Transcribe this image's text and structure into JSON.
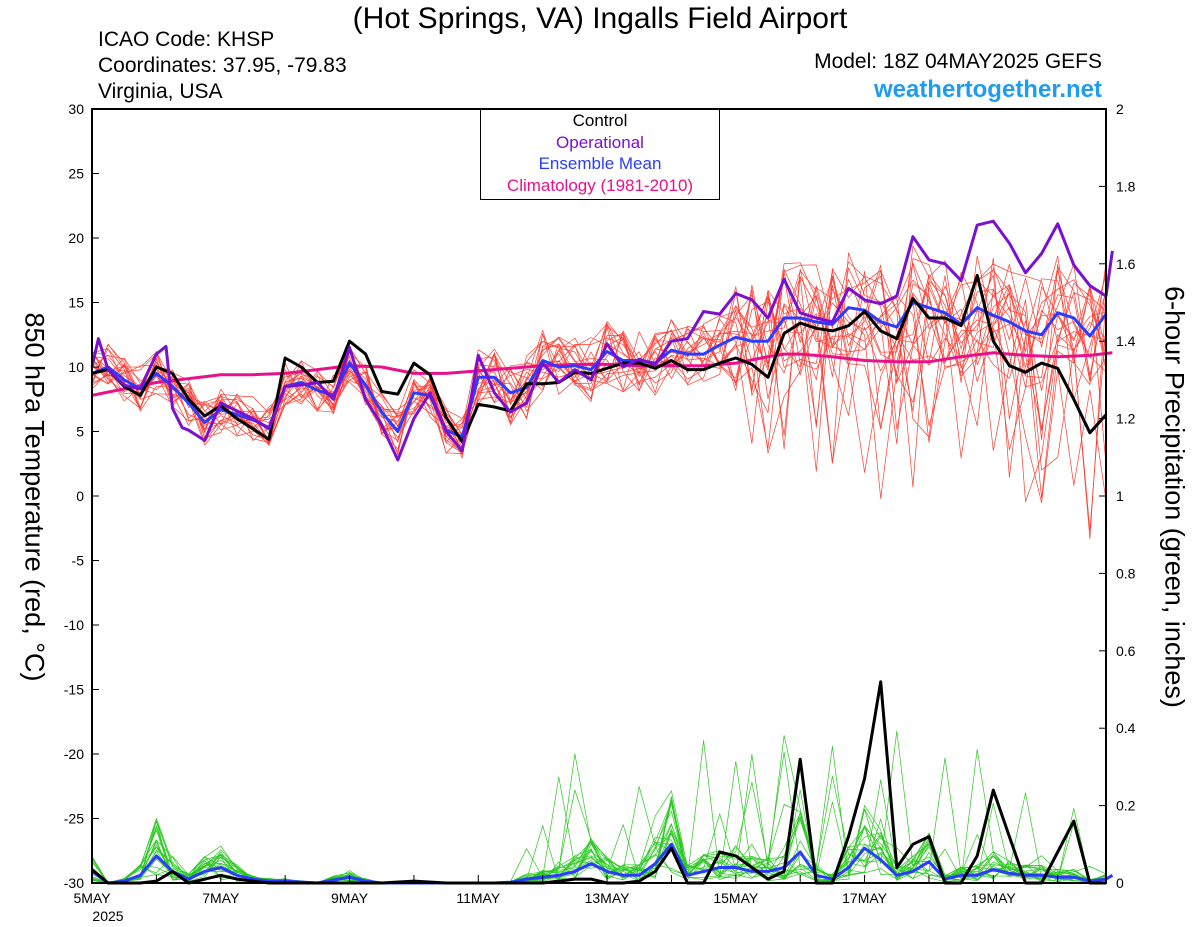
{
  "header": {
    "title": "(Hot Springs, VA) Ingalls Field Airport",
    "icao": "ICAO Code: KHSP",
    "coordinates": "Coordinates: 37.95, -79.83",
    "region": "Virginia, USA",
    "model": "Model: 18Z 04MAY2025 GEFS",
    "site": "weathertogether.net"
  },
  "colors": {
    "control": "#000000",
    "operational": "#7a10d0",
    "ensemble_mean": "#2a3cff",
    "climatology": "#e8118a",
    "members_temp": "#ff3b30",
    "members_precip": "#28c81e",
    "site": "#1e9cf0"
  },
  "chart_data": {
    "type": "line",
    "legend": [
      "Control",
      "Operational",
      "Ensemble Mean",
      "Climatology (1981-2010)"
    ],
    "ylabel_left": "850 hPa Temperature (red, °C)",
    "ylabel_right": "6-hour Precipitation (green, inches)",
    "ylim_left": [
      -30,
      30
    ],
    "ylim_right": [
      0,
      2
    ],
    "yticks_left": [
      "30",
      "25",
      "20",
      "15",
      "10",
      "5",
      "0",
      "-5",
      "-10",
      "-15",
      "-20",
      "-25",
      "-30"
    ],
    "yticks_right": [
      "2",
      "1.8",
      "1.6",
      "1.4",
      "1.2",
      "1",
      "0.8",
      "0.6",
      "0.4",
      "0.2",
      "0"
    ],
    "x_start_day": 5,
    "x_end_day": 20.75,
    "x_tick_labels": [
      "5MAY",
      "7MAY",
      "9MAY",
      "11MAY",
      "13MAY",
      "15MAY",
      "17MAY",
      "19MAY"
    ],
    "x_tick_days": [
      5,
      7,
      9,
      11,
      13,
      15,
      17,
      19
    ],
    "x_sublabel": "2025",
    "temperature": {
      "control": [
        [
          5,
          9.5
        ],
        [
          5.25,
          9.8
        ],
        [
          5.5,
          8.5
        ],
        [
          5.75,
          7.8
        ],
        [
          6,
          10
        ],
        [
          6.25,
          9.5
        ],
        [
          6.5,
          7.5
        ],
        [
          6.75,
          6.2
        ],
        [
          7,
          7
        ],
        [
          7.25,
          6
        ],
        [
          7.5,
          5.2
        ],
        [
          7.75,
          4.4
        ],
        [
          8,
          10.7
        ],
        [
          8.25,
          10
        ],
        [
          8.5,
          8.8
        ],
        [
          8.75,
          8.9
        ],
        [
          9,
          12
        ],
        [
          9.25,
          11
        ],
        [
          9.5,
          8.1
        ],
        [
          9.75,
          7.9
        ],
        [
          10,
          10.3
        ],
        [
          10.25,
          9.4
        ],
        [
          10.5,
          6.1
        ],
        [
          10.75,
          4.2
        ],
        [
          11,
          7.1
        ],
        [
          11.25,
          6.9
        ],
        [
          11.5,
          6.6
        ],
        [
          11.75,
          8.7
        ],
        [
          12,
          8.7
        ],
        [
          12.25,
          8.8
        ],
        [
          12.5,
          9.6
        ],
        [
          12.75,
          9.5
        ],
        [
          13,
          9.9
        ],
        [
          13.25,
          10.3
        ],
        [
          13.5,
          10.3
        ],
        [
          13.75,
          9.9
        ],
        [
          14,
          10.5
        ],
        [
          14.25,
          9.8
        ],
        [
          14.5,
          9.8
        ],
        [
          14.75,
          10.3
        ],
        [
          15,
          10.7
        ],
        [
          15.25,
          10.2
        ],
        [
          15.5,
          9.2
        ],
        [
          15.75,
          12.6
        ],
        [
          16,
          13.4
        ],
        [
          16.25,
          13
        ],
        [
          16.5,
          12.8
        ],
        [
          16.75,
          13.2
        ],
        [
          17,
          14.3
        ],
        [
          17.25,
          12.8
        ],
        [
          17.5,
          12.2
        ],
        [
          17.75,
          15.3
        ],
        [
          18,
          13.8
        ],
        [
          18.25,
          13.8
        ],
        [
          18.5,
          13.2
        ],
        [
          18.75,
          17.1
        ],
        [
          19,
          12
        ],
        [
          19.25,
          10.1
        ],
        [
          19.5,
          9.6
        ],
        [
          19.75,
          10.3
        ],
        [
          20,
          9.9
        ],
        [
          20.25,
          7.5
        ],
        [
          20.5,
          4.9
        ],
        [
          20.75,
          6.3
        ]
      ],
      "operational": [
        [
          5,
          10
        ],
        [
          5.1,
          12.2
        ],
        [
          5.25,
          9.8
        ],
        [
          5.5,
          8.6
        ],
        [
          5.75,
          8.3
        ],
        [
          6,
          11
        ],
        [
          6.15,
          11.6
        ],
        [
          6.25,
          6.8
        ],
        [
          6.4,
          5.3
        ],
        [
          6.5,
          5.1
        ],
        [
          6.75,
          4.3
        ],
        [
          7,
          7.2
        ],
        [
          7.25,
          6.6
        ],
        [
          7.5,
          6
        ],
        [
          7.75,
          5.2
        ],
        [
          8,
          8.5
        ],
        [
          8.25,
          8.6
        ],
        [
          8.5,
          8.8
        ],
        [
          8.75,
          7.5
        ],
        [
          9,
          11.5
        ],
        [
          9.25,
          7.5
        ],
        [
          9.5,
          5.5
        ],
        [
          9.75,
          2.8
        ],
        [
          10,
          6
        ],
        [
          10.25,
          8
        ],
        [
          10.5,
          5
        ],
        [
          10.75,
          3.5
        ],
        [
          11,
          10.9
        ],
        [
          11.25,
          8
        ],
        [
          11.5,
          6.5
        ],
        [
          11.75,
          7.2
        ],
        [
          12,
          10.3
        ],
        [
          12.25,
          8.8
        ],
        [
          12.5,
          9.8
        ],
        [
          12.75,
          9
        ],
        [
          13,
          11.8
        ],
        [
          13.25,
          10
        ],
        [
          13.5,
          10.6
        ],
        [
          13.75,
          10.2
        ],
        [
          14,
          12
        ],
        [
          14.25,
          12.2
        ],
        [
          14.5,
          14.3
        ],
        [
          14.75,
          14.1
        ],
        [
          15,
          15.7
        ],
        [
          15.25,
          15.2
        ],
        [
          15.5,
          13.8
        ],
        [
          15.75,
          16.8
        ],
        [
          16,
          14.2
        ],
        [
          16.25,
          13.8
        ],
        [
          16.5,
          13.5
        ],
        [
          16.75,
          16.1
        ],
        [
          17,
          15.2
        ],
        [
          17.25,
          14.9
        ],
        [
          17.5,
          15.5
        ],
        [
          17.75,
          20.1
        ],
        [
          18,
          18.3
        ],
        [
          18.25,
          18
        ],
        [
          18.5,
          16.7
        ],
        [
          18.75,
          21
        ],
        [
          19,
          21.3
        ],
        [
          19.25,
          19.6
        ],
        [
          19.5,
          17.3
        ],
        [
          19.75,
          18.8
        ],
        [
          20,
          21.1
        ],
        [
          20.25,
          17.9
        ],
        [
          20.5,
          16.3
        ],
        [
          20.75,
          15.5
        ],
        [
          20.85,
          19
        ]
      ],
      "mean": [
        [
          5,
          9.5
        ],
        [
          5.25,
          10
        ],
        [
          5.5,
          9
        ],
        [
          5.75,
          8.3
        ],
        [
          6,
          9.5
        ],
        [
          6.25,
          8.5
        ],
        [
          6.5,
          7.2
        ],
        [
          6.75,
          5.7
        ],
        [
          7,
          6.7
        ],
        [
          7.25,
          6.3
        ],
        [
          7.5,
          5.9
        ],
        [
          7.75,
          5.3
        ],
        [
          8,
          8.5
        ],
        [
          8.25,
          8.8
        ],
        [
          8.5,
          8.2
        ],
        [
          8.75,
          7.8
        ],
        [
          9,
          10.3
        ],
        [
          9.25,
          8.6
        ],
        [
          9.5,
          6.5
        ],
        [
          9.75,
          5
        ],
        [
          10,
          8
        ],
        [
          10.25,
          7.8
        ],
        [
          10.5,
          5.1
        ],
        [
          10.75,
          4.6
        ],
        [
          11,
          9.2
        ],
        [
          11.25,
          9.2
        ],
        [
          11.5,
          8
        ],
        [
          11.75,
          8.4
        ],
        [
          12,
          10.5
        ],
        [
          12.25,
          10
        ],
        [
          12.5,
          10.1
        ],
        [
          12.75,
          9.8
        ],
        [
          13,
          11.2
        ],
        [
          13.25,
          10.5
        ],
        [
          13.5,
          10.5
        ],
        [
          13.75,
          10.3
        ],
        [
          14,
          11.3
        ],
        [
          14.25,
          11
        ],
        [
          14.5,
          11
        ],
        [
          14.75,
          11.7
        ],
        [
          15,
          12.3
        ],
        [
          15.25,
          12
        ],
        [
          15.5,
          12
        ],
        [
          15.75,
          13.8
        ],
        [
          16,
          13.8
        ],
        [
          16.25,
          13.5
        ],
        [
          16.5,
          13.3
        ],
        [
          16.75,
          14.6
        ],
        [
          17,
          14.4
        ],
        [
          17.25,
          13.5
        ],
        [
          17.5,
          13.1
        ],
        [
          17.75,
          15
        ],
        [
          18,
          14.6
        ],
        [
          18.25,
          14.2
        ],
        [
          18.5,
          13.3
        ],
        [
          18.75,
          14.6
        ],
        [
          19,
          14
        ],
        [
          19.25,
          13.5
        ],
        [
          19.5,
          12.8
        ],
        [
          19.75,
          12.5
        ],
        [
          20,
          14.2
        ],
        [
          20.25,
          13.8
        ],
        [
          20.5,
          12.4
        ],
        [
          20.75,
          14.1
        ]
      ],
      "climatology": [
        [
          5,
          7.8
        ],
        [
          5.5,
          8.3
        ],
        [
          6,
          8.8
        ],
        [
          7,
          9.4
        ],
        [
          7.5,
          9.4
        ],
        [
          8,
          9.5
        ],
        [
          8.5,
          9.8
        ],
        [
          9,
          10.1
        ],
        [
          9.5,
          10
        ],
        [
          10,
          9.5
        ],
        [
          10.5,
          9.5
        ],
        [
          11,
          9.7
        ],
        [
          11.5,
          9.9
        ],
        [
          12,
          10.1
        ],
        [
          12.5,
          10.2
        ],
        [
          13,
          10.2
        ],
        [
          13.5,
          10.1
        ],
        [
          14,
          10.1
        ],
        [
          14.5,
          10.1
        ],
        [
          15,
          10.3
        ],
        [
          15.5,
          10.8
        ],
        [
          15.75,
          11
        ],
        [
          16,
          11
        ],
        [
          16.5,
          10.8
        ],
        [
          17,
          10.5
        ],
        [
          17.5,
          10.4
        ],
        [
          18,
          10.4
        ],
        [
          18.5,
          10.8
        ],
        [
          19,
          11.1
        ],
        [
          19.5,
          10.9
        ],
        [
          20,
          10.8
        ],
        [
          20.5,
          10.9
        ],
        [
          20.85,
          11.1
        ]
      ]
    },
    "precipitation": {
      "control": [
        [
          5,
          0.035
        ],
        [
          5.25,
          0
        ],
        [
          5.5,
          0
        ],
        [
          5.75,
          0
        ],
        [
          6,
          0.005
        ],
        [
          6.25,
          0.03
        ],
        [
          6.5,
          0
        ],
        [
          7,
          0.02
        ],
        [
          7.25,
          0.01
        ],
        [
          7.5,
          0.005
        ],
        [
          7.75,
          0
        ],
        [
          8,
          0
        ],
        [
          9,
          0
        ],
        [
          9.5,
          0
        ],
        [
          10,
          0.005
        ],
        [
          10.5,
          0
        ],
        [
          11,
          0
        ],
        [
          11.5,
          0
        ],
        [
          12,
          0
        ],
        [
          12.25,
          0.005
        ],
        [
          12.5,
          0.01
        ],
        [
          12.75,
          0.01
        ],
        [
          13,
          0
        ],
        [
          13.25,
          0
        ],
        [
          13.5,
          0.005
        ],
        [
          13.75,
          0.03
        ],
        [
          14,
          0.09
        ],
        [
          14.25,
          0
        ],
        [
          14.5,
          0
        ],
        [
          14.75,
          0.08
        ],
        [
          15,
          0.07
        ],
        [
          15.25,
          0.04
        ],
        [
          15.5,
          0.01
        ],
        [
          15.75,
          0.03
        ],
        [
          16,
          0.32
        ],
        [
          16.25,
          0
        ],
        [
          16.5,
          0
        ],
        [
          16.75,
          0.12
        ],
        [
          17,
          0.27
        ],
        [
          17.25,
          0.52
        ],
        [
          17.5,
          0.04
        ],
        [
          17.75,
          0.1
        ],
        [
          18,
          0.12
        ],
        [
          18.25,
          0
        ],
        [
          18.5,
          0
        ],
        [
          18.75,
          0.07
        ],
        [
          19,
          0.24
        ],
        [
          19.25,
          0.12
        ],
        [
          19.5,
          0
        ],
        [
          19.75,
          0
        ],
        [
          20,
          0.08
        ],
        [
          20.25,
          0.16
        ],
        [
          20.5,
          0
        ],
        [
          20.75,
          0
        ]
      ],
      "mean": [
        [
          5,
          0.03
        ],
        [
          5.25,
          0
        ],
        [
          5.5,
          0.005
        ],
        [
          5.75,
          0.02
        ],
        [
          6,
          0.07
        ],
        [
          6.25,
          0.03
        ],
        [
          6.5,
          0.01
        ],
        [
          6.75,
          0.03
        ],
        [
          7,
          0.04
        ],
        [
          7.25,
          0.02
        ],
        [
          7.5,
          0.01
        ],
        [
          7.75,
          0.005
        ],
        [
          8,
          0.005
        ],
        [
          8.5,
          0
        ],
        [
          9,
          0.015
        ],
        [
          9.25,
          0.005
        ],
        [
          9.5,
          0
        ],
        [
          10,
          0
        ],
        [
          10.5,
          0
        ],
        [
          11,
          0
        ],
        [
          11.25,
          0
        ],
        [
          11.5,
          0.002
        ],
        [
          11.75,
          0.01
        ],
        [
          12,
          0.015
        ],
        [
          12.25,
          0.02
        ],
        [
          12.5,
          0.03
        ],
        [
          12.75,
          0.05
        ],
        [
          13,
          0.03
        ],
        [
          13.25,
          0.02
        ],
        [
          13.5,
          0.02
        ],
        [
          13.75,
          0.05
        ],
        [
          14,
          0.1
        ],
        [
          14.25,
          0.02
        ],
        [
          14.5,
          0.03
        ],
        [
          14.75,
          0.04
        ],
        [
          15,
          0.04
        ],
        [
          15.25,
          0.03
        ],
        [
          15.5,
          0.03
        ],
        [
          15.75,
          0.04
        ],
        [
          16,
          0.08
        ],
        [
          16.25,
          0.02
        ],
        [
          16.5,
          0.01
        ],
        [
          16.75,
          0.04
        ],
        [
          17,
          0.09
        ],
        [
          17.25,
          0.06
        ],
        [
          17.5,
          0.02
        ],
        [
          17.75,
          0.03
        ],
        [
          18,
          0.055
        ],
        [
          18.25,
          0.01
        ],
        [
          18.5,
          0.02
        ],
        [
          18.75,
          0.02
        ],
        [
          19,
          0.035
        ],
        [
          19.25,
          0.025
        ],
        [
          19.5,
          0.02
        ],
        [
          19.75,
          0.02
        ],
        [
          20,
          0.015
        ],
        [
          20.25,
          0.015
        ],
        [
          20.5,
          0.005
        ],
        [
          20.75,
          0.01
        ],
        [
          20.85,
          0.02
        ]
      ]
    }
  }
}
